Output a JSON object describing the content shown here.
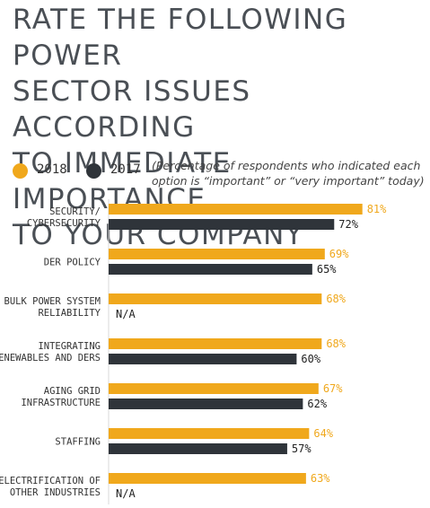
{
  "title_lines": [
    "RATE THE FOLLOWING POWER",
    "SECTOR ISSUES ACCORDING",
    "TO IMMEDIATE IMPORTANCE",
    "TO YOUR COMPANY"
  ],
  "legend_note": "(Percentage of respondents who indicated each option is “important” or “very important” today)",
  "colors": {
    "s2018": "#f0a81c",
    "s2017": "#2f343a",
    "axis": "#d9d9d9"
  },
  "chart_data": {
    "type": "bar",
    "orientation": "horizontal",
    "title": "RATE THE FOLLOWING POWER SECTOR ISSUES ACCORDING TO IMMEDIATE IMPORTANCE TO YOUR COMPANY",
    "xlim": [
      0,
      100
    ],
    "legend_placement": "top-left",
    "categories": [
      [
        "SECURITY/",
        "CYBERSECURITY"
      ],
      [
        "DER POLICY"
      ],
      [
        "BULK POWER SYSTEM",
        "RELIABILITY"
      ],
      [
        "INTEGRATING",
        "RENEWABLES AND DERS"
      ],
      [
        "AGING GRID",
        "INFRASTRUCTURE"
      ],
      [
        "STAFFING"
      ],
      [
        "ELECTRIFICATION OF",
        "OTHER INDUSTRIES"
      ]
    ],
    "series": [
      {
        "name": "2018",
        "values": [
          81,
          69,
          68,
          68,
          67,
          64,
          63
        ],
        "labels": [
          "81%",
          "69%",
          "68%",
          "68%",
          "67%",
          "64%",
          "63%"
        ]
      },
      {
        "name": "2017",
        "values": [
          72,
          65,
          null,
          60,
          62,
          57,
          null
        ],
        "labels": [
          "72%",
          "65%",
          "N/A",
          "60%",
          "62%",
          "57%",
          "N/A"
        ]
      }
    ]
  }
}
